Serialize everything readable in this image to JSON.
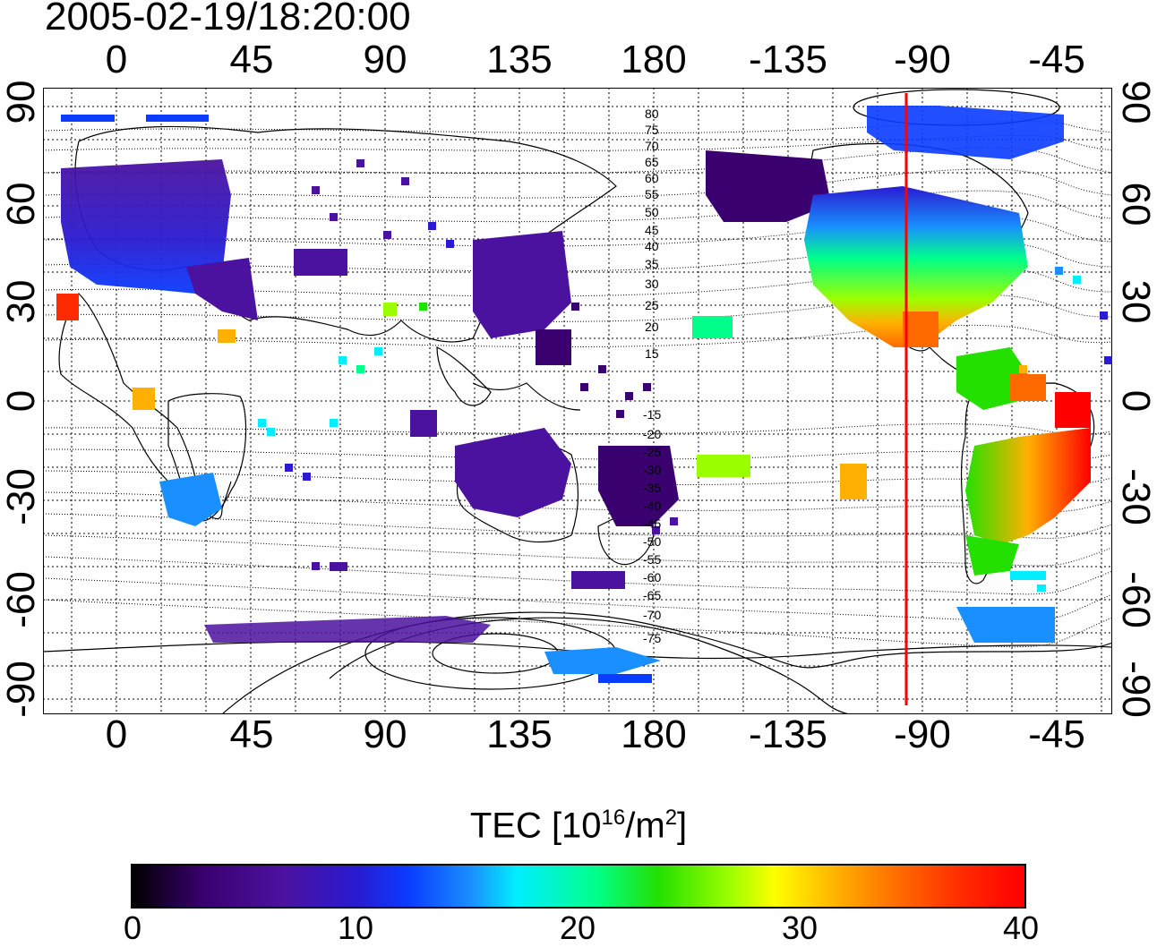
{
  "timestamp": "2005-02-19/18:20:00",
  "lon_labels": [
    "0",
    "45",
    "90",
    "135",
    "180",
    "-135",
    "-90",
    "-45"
  ],
  "lat_labels": [
    "90",
    "60",
    "30",
    "0",
    "-30",
    "-60",
    "-90"
  ],
  "contour_labels": [
    "80",
    "75",
    "70",
    "65",
    "60",
    "55",
    "50",
    "45",
    "40",
    "35",
    "30",
    "25",
    "20",
    "15",
    "-15",
    "-20",
    "-25",
    "-30",
    "-35",
    "-40",
    "-45",
    "-50",
    "-55",
    "-60",
    "-65",
    "-70",
    "-75"
  ],
  "colorbar": {
    "title_prefix": "TEC  [10",
    "title_exp1": "16",
    "title_mid": "/m",
    "title_exp2": "2",
    "title_suffix": "]",
    "ticks": [
      "0",
      "10",
      "20",
      "30",
      "40"
    ]
  },
  "colors": {
    "terminator_line": "#ff0000",
    "low": "#4b12a0",
    "high": "#ff0000"
  }
}
